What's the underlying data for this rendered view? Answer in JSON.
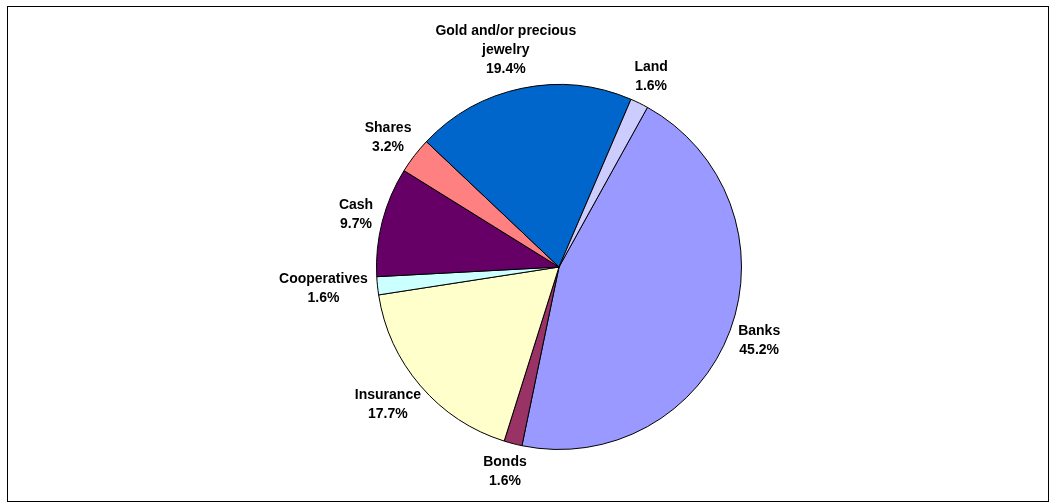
{
  "chart_data": {
    "type": "pie",
    "categories": [
      "Banks",
      "Bonds",
      "Insurance",
      "Cooperatives",
      "Cash",
      "Shares",
      "Gold and/or precious jewelry",
      "Land"
    ],
    "values": [
      45.2,
      1.6,
      17.7,
      1.6,
      9.7,
      3.2,
      19.4,
      1.6
    ],
    "colors": [
      "#9999ff",
      "#993366",
      "#ffffcc",
      "#ccffff",
      "#660066",
      "#ff8080",
      "#0066cc",
      "#ccccff"
    ],
    "value_labels": [
      "45.2%",
      "1.6%",
      "17.7%",
      "1.6%",
      "9.7%",
      "3.2%",
      "19.4%",
      "1.6%"
    ],
    "legend": false
  }
}
